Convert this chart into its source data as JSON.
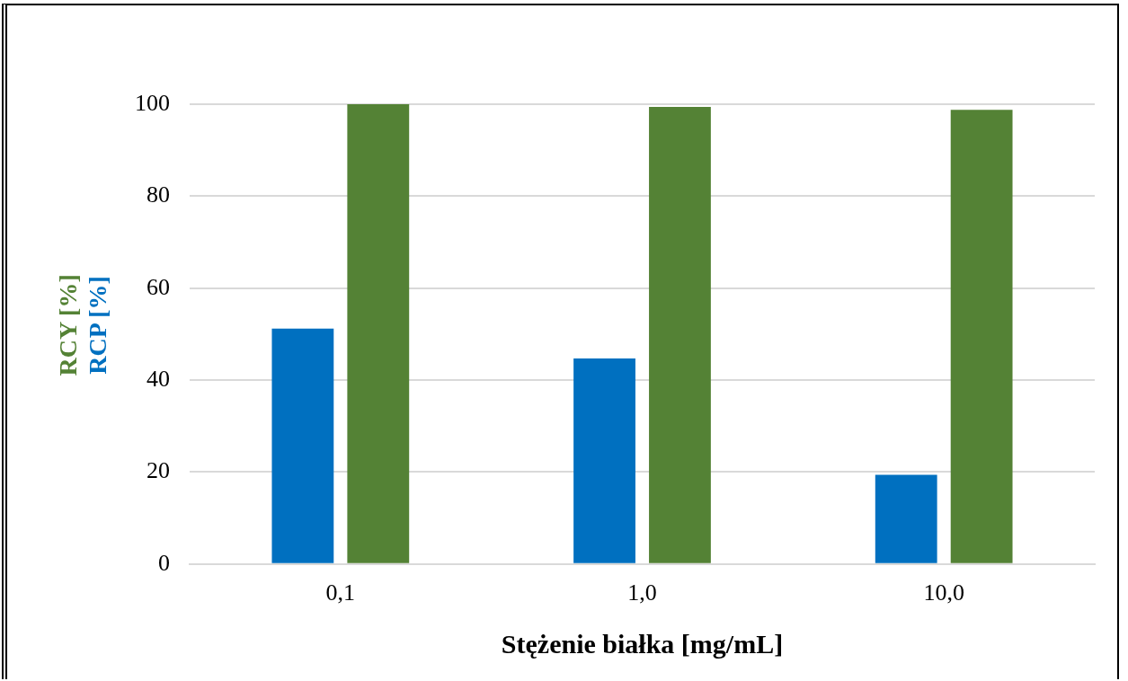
{
  "chart_data": {
    "type": "bar",
    "xlabel": "Stężenie białka [mg/mL]",
    "categories": [
      "0,1",
      "1,0",
      "10,0"
    ],
    "series": [
      {
        "name": "RCP [%]",
        "color": "#0070c0",
        "values": [
          51.2,
          44.7,
          19.4
        ]
      },
      {
        "name": "RCY [%]",
        "color": "#548235",
        "values": [
          100,
          99.4,
          98.8
        ]
      }
    ],
    "ylim": [
      0,
      100
    ],
    "yticks": [
      0,
      20,
      40,
      60,
      80,
      100
    ],
    "grid": "y",
    "legend": false
  }
}
